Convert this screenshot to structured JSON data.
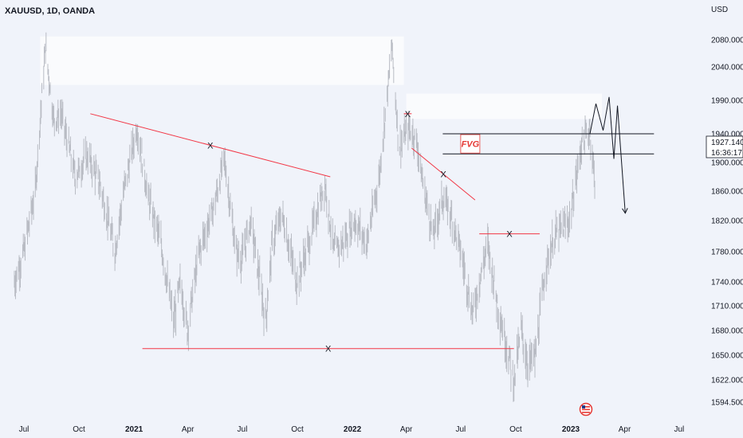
{
  "header": {
    "symbol": "XAUUSD, 1D, OANDA"
  },
  "price_axis": {
    "currency": "USD",
    "ticks": [
      "2080.000",
      "2040.000",
      "1990.000",
      "1940.000",
      "1900.000",
      "1860.000",
      "1820.000",
      "1780.000",
      "1740.000",
      "1710.000",
      "1680.000",
      "1650.000",
      "1622.000",
      "1594.500"
    ],
    "current_price": "1927.140",
    "countdown": "16:36:17"
  },
  "time_axis": {
    "labels": [
      {
        "text": "Jul",
        "bold": false
      },
      {
        "text": "Oct",
        "bold": false
      },
      {
        "text": "2021",
        "bold": true
      },
      {
        "text": "Apr",
        "bold": false
      },
      {
        "text": "Jul",
        "bold": false
      },
      {
        "text": "Oct",
        "bold": false
      },
      {
        "text": "2022",
        "bold": true
      },
      {
        "text": "Apr",
        "bold": false
      },
      {
        "text": "Jul",
        "bold": false
      },
      {
        "text": "Oct",
        "bold": false
      },
      {
        "text": "2023",
        "bold": true
      },
      {
        "text": "Apr",
        "bold": false
      },
      {
        "text": "Jul",
        "bold": false
      }
    ]
  },
  "annotations": {
    "fvg_label": "FVG",
    "x_mark": "X"
  },
  "chart_data": {
    "type": "line",
    "title": "XAUUSD, 1D, OANDA",
    "ylabel": "USD",
    "ylim": [
      1580,
      2110
    ],
    "series": [
      {
        "name": "XAUUSD",
        "x": [
          "2020-06-15",
          "2020-07-01",
          "2020-07-20",
          "2020-08-06",
          "2020-08-20",
          "2020-09-01",
          "2020-09-25",
          "2020-10-15",
          "2020-11-05",
          "2020-11-30",
          "2020-12-15",
          "2021-01-06",
          "2021-01-25",
          "2021-02-15",
          "2021-03-08",
          "2021-03-20",
          "2021-03-31",
          "2021-04-20",
          "2021-05-15",
          "2021-06-01",
          "2021-06-20",
          "2021-06-30",
          "2021-07-15",
          "2021-08-09",
          "2021-08-20",
          "2021-09-05",
          "2021-09-30",
          "2021-10-20",
          "2021-11-16",
          "2021-12-01",
          "2021-12-15",
          "2022-01-05",
          "2022-01-25",
          "2022-02-15",
          "2022-03-08",
          "2022-03-20",
          "2022-04-05",
          "2022-04-18",
          "2022-05-01",
          "2022-05-16",
          "2022-06-01",
          "2022-06-14",
          "2022-07-01",
          "2022-07-21",
          "2022-08-15",
          "2022-09-01",
          "2022-09-28",
          "2022-10-10",
          "2022-10-21",
          "2022-11-03",
          "2022-11-20",
          "2022-12-05",
          "2022-12-30",
          "2023-01-20",
          "2023-02-02",
          "2023-02-10"
        ],
        "values": [
          1740,
          1780,
          1860,
          2070,
          1960,
          1970,
          1880,
          1910,
          1870,
          1780,
          1860,
          1950,
          1850,
          1790,
          1690,
          1740,
          1680,
          1780,
          1840,
          1905,
          1780,
          1770,
          1820,
          1690,
          1790,
          1830,
          1740,
          1790,
          1870,
          1780,
          1790,
          1820,
          1790,
          1880,
          2070,
          1920,
          1950,
          1930,
          1860,
          1800,
          1850,
          1830,
          1780,
          1700,
          1790,
          1710,
          1620,
          1680,
          1640,
          1650,
          1760,
          1800,
          1820,
          1930,
          1945,
          1875
        ]
      }
    ],
    "zones": [
      {
        "label": "",
        "x0": "2020-07-28",
        "x1": "2022-03-28",
        "y0": 2013,
        "y1": 2085
      },
      {
        "label": "",
        "x0": "2022-04-01",
        "x1": "2023-02-22",
        "y0": 1962,
        "y1": 2000
      }
    ],
    "trendlines": [
      {
        "label": "X",
        "from": {
          "x": "2020-10-20",
          "y": 1970
        },
        "to": {
          "x": "2021-11-25",
          "y": 1880
        }
      },
      {
        "label": "X",
        "from": {
          "x": "2022-04-10",
          "y": 1920
        },
        "to": {
          "x": "2022-07-25",
          "y": 1848
        }
      },
      {
        "label": "X",
        "from": {
          "x": "2021-01-15",
          "y": 1658
        },
        "to": {
          "x": "2022-09-28",
          "y": 1658
        }
      },
      {
        "label": "X",
        "from": {
          "x": "2022-08-01",
          "y": 1803
        },
        "to": {
          "x": "2022-11-10",
          "y": 1803
        }
      },
      {
        "label": "X",
        "from": {
          "x": "2022-03-28",
          "y": 1970
        },
        "to": {
          "x": "2022-04-10",
          "y": 1970
        }
      }
    ],
    "fvg": {
      "label": "FVG",
      "x0": "2022-06-01",
      "x1": "2023-05-20",
      "y0": 1912,
      "y1": 1940
    },
    "projection": [
      {
        "x": "2023-02-02",
        "y": 1940
      },
      {
        "x": "2023-02-12",
        "y": 1985
      },
      {
        "x": "2023-02-24",
        "y": 1945
      },
      {
        "x": "2023-03-06",
        "y": 1995
      },
      {
        "x": "2023-03-14",
        "y": 1905
      },
      {
        "x": "2023-03-20",
        "y": 1982
      },
      {
        "x": "2023-04-02",
        "y": 1830
      }
    ]
  }
}
